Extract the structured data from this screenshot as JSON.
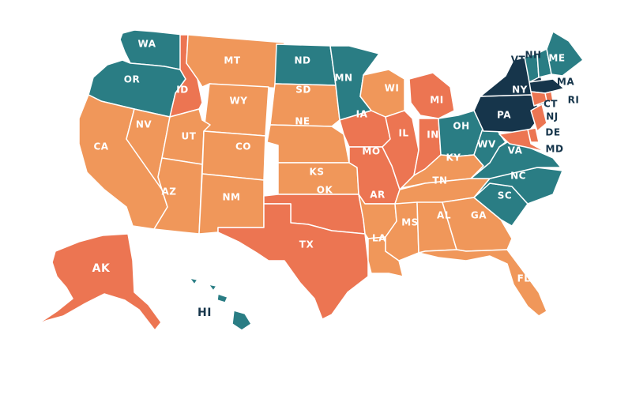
{
  "colors": {
    "teal": "#2a7d84",
    "orange": "#f0975a",
    "coral": "#ec7552",
    "navy": "#16354b",
    "label_light": "#ffffff",
    "label_dark": "#16354b"
  },
  "states": [
    {
      "abbr": "WA",
      "color": "teal"
    },
    {
      "abbr": "OR",
      "color": "teal"
    },
    {
      "abbr": "CA",
      "color": "orange"
    },
    {
      "abbr": "NV",
      "color": "orange"
    },
    {
      "abbr": "ID",
      "color": "coral"
    },
    {
      "abbr": "MT",
      "color": "orange"
    },
    {
      "abbr": "WY",
      "color": "orange"
    },
    {
      "abbr": "UT",
      "color": "orange"
    },
    {
      "abbr": "CO",
      "color": "orange"
    },
    {
      "abbr": "AZ",
      "color": "orange"
    },
    {
      "abbr": "NM",
      "color": "orange"
    },
    {
      "abbr": "ND",
      "color": "teal"
    },
    {
      "abbr": "SD",
      "color": "orange"
    },
    {
      "abbr": "NE",
      "color": "orange"
    },
    {
      "abbr": "KS",
      "color": "orange"
    },
    {
      "abbr": "OK",
      "color": "coral"
    },
    {
      "abbr": "TX",
      "color": "coral"
    },
    {
      "abbr": "MN",
      "color": "teal"
    },
    {
      "abbr": "IA",
      "color": "coral"
    },
    {
      "abbr": "MO",
      "color": "coral"
    },
    {
      "abbr": "AR",
      "color": "orange"
    },
    {
      "abbr": "LA",
      "color": "orange"
    },
    {
      "abbr": "WI",
      "color": "orange"
    },
    {
      "abbr": "IL",
      "color": "coral"
    },
    {
      "abbr": "MI",
      "color": "coral"
    },
    {
      "abbr": "IN",
      "color": "coral"
    },
    {
      "abbr": "OH",
      "color": "teal"
    },
    {
      "abbr": "KY",
      "color": "orange"
    },
    {
      "abbr": "TN",
      "color": "orange"
    },
    {
      "abbr": "MS",
      "color": "orange"
    },
    {
      "abbr": "AL",
      "color": "orange"
    },
    {
      "abbr": "GA",
      "color": "orange"
    },
    {
      "abbr": "FL",
      "color": "orange"
    },
    {
      "abbr": "SC",
      "color": "teal"
    },
    {
      "abbr": "NC",
      "color": "teal"
    },
    {
      "abbr": "VA",
      "color": "teal"
    },
    {
      "abbr": "WV",
      "color": "teal"
    },
    {
      "abbr": "PA",
      "color": "navy"
    },
    {
      "abbr": "NY",
      "color": "navy"
    },
    {
      "abbr": "VT",
      "color": "teal"
    },
    {
      "abbr": "NH",
      "color": "teal"
    },
    {
      "abbr": "ME",
      "color": "teal"
    },
    {
      "abbr": "MA",
      "color": "navy"
    },
    {
      "abbr": "RI",
      "color": "coral"
    },
    {
      "abbr": "CT",
      "color": "coral"
    },
    {
      "abbr": "NJ",
      "color": "coral"
    },
    {
      "abbr": "DE",
      "color": "coral"
    },
    {
      "abbr": "MD",
      "color": "coral"
    },
    {
      "abbr": "AK",
      "color": "coral"
    },
    {
      "abbr": "HI",
      "color": "teal"
    }
  ]
}
